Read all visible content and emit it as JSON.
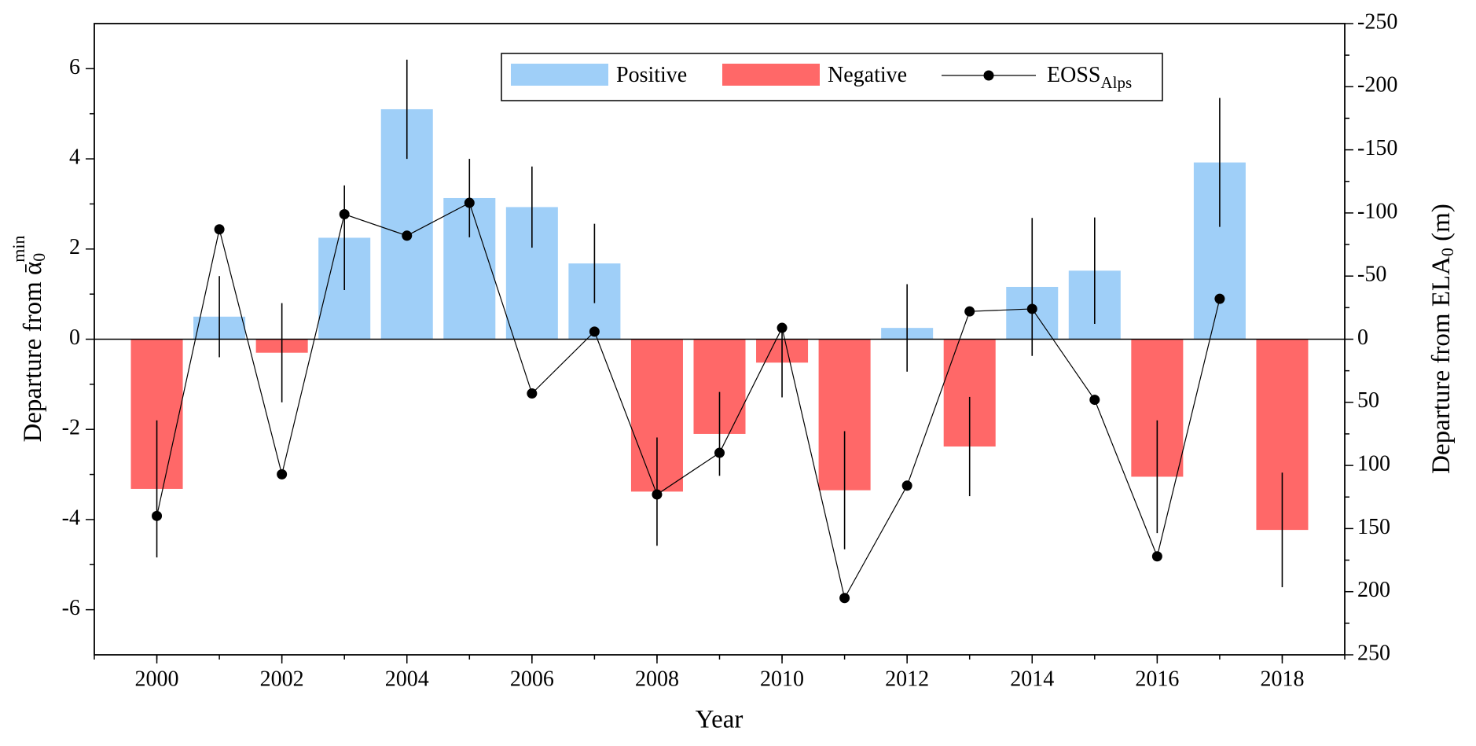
{
  "chart_data": {
    "type": "bar",
    "x": [
      2000,
      2001,
      2002,
      2003,
      2004,
      2005,
      2006,
      2007,
      2008,
      2009,
      2010,
      2011,
      2012,
      2013,
      2014,
      2015,
      2016,
      2017,
      2018
    ],
    "x_label": "Year",
    "y_label": "Departure from ",
    "y_label_symbol": "ᾱ",
    "y_label_sub": "0",
    "y_label_sup": "min",
    "y2_label": "Departure from ELA",
    "y2_label_sub": "0",
    "y2_label_unit": " (m)",
    "series": [
      {
        "name": "Positive",
        "type": "bar",
        "color": "#9fcff8",
        "values": [
          null,
          0.5,
          null,
          2.25,
          5.1,
          3.13,
          2.93,
          1.68,
          null,
          null,
          null,
          null,
          0.25,
          null,
          1.16,
          1.52,
          null,
          3.92,
          null
        ],
        "errors": [
          null,
          0.9,
          null,
          1.16,
          1.1,
          0.87,
          0.9,
          0.88,
          null,
          null,
          null,
          null,
          0.97,
          null,
          1.53,
          1.18,
          null,
          1.43,
          null
        ]
      },
      {
        "name": "Negative",
        "type": "bar",
        "color": "#ff6868",
        "values": [
          -3.32,
          null,
          -0.3,
          null,
          null,
          null,
          null,
          null,
          -3.38,
          -2.1,
          -0.52,
          -3.35,
          null,
          -2.38,
          null,
          null,
          -3.05,
          null,
          -4.23
        ],
        "errors": [
          1.52,
          null,
          1.1,
          null,
          null,
          null,
          null,
          null,
          1.2,
          0.93,
          0.77,
          1.31,
          null,
          1.1,
          null,
          null,
          1.25,
          null,
          1.27
        ]
      },
      {
        "name": "EOSS",
        "name_subscript": "Alps",
        "type": "line",
        "axis": "y2",
        "color": "#000000",
        "values": [
          140,
          -87,
          107,
          -99,
          -82,
          -108,
          43,
          -6,
          123,
          90,
          -9,
          205,
          116,
          -22,
          -24,
          48,
          172,
          -32,
          null
        ]
      }
    ],
    "xlim": [
      1999,
      2019
    ],
    "xticks": [
      2000,
      2002,
      2004,
      2006,
      2008,
      2010,
      2012,
      2014,
      2016,
      2018
    ],
    "ylim": [
      -7,
      7
    ],
    "yticks": [
      -6,
      -4,
      -2,
      0,
      2,
      4,
      6
    ],
    "y2lim": [
      250,
      -250
    ],
    "y2ticks": [
      -250,
      -200,
      -150,
      -100,
      -50,
      0,
      50,
      100,
      150,
      200,
      250
    ],
    "legend": "top"
  }
}
